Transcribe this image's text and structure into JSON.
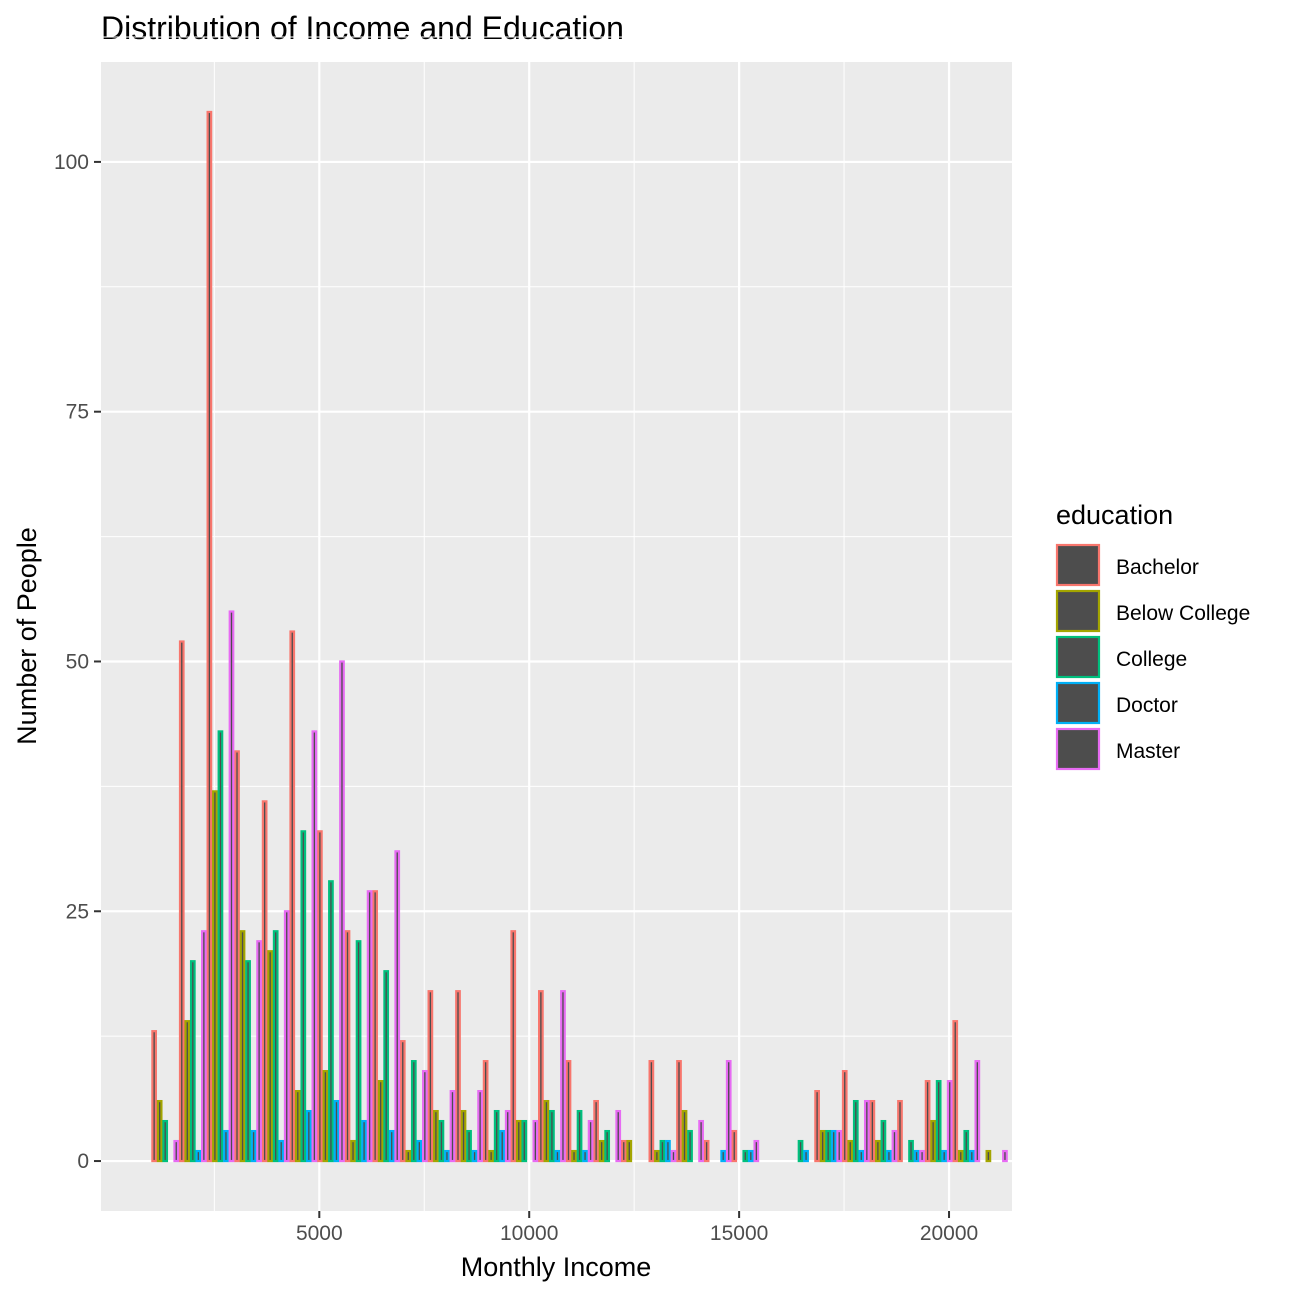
{
  "chart_data": {
    "type": "bar",
    "title": "Distribution of Income and Education",
    "xlabel": "Monthly Income",
    "ylabel": "Number of People",
    "xlim": [
      -200,
      21500
    ],
    "ylim": [
      -5,
      110
    ],
    "x_ticks": [
      5000,
      10000,
      15000,
      20000
    ],
    "y_ticks": [
      0,
      25,
      50,
      75,
      100
    ],
    "x_tick_labels": [
      "5000",
      "10000",
      "15000",
      "20000"
    ],
    "y_tick_labels": [
      "0",
      "25",
      "50",
      "75",
      "100"
    ],
    "bin_start": 1000,
    "bin_width": 658,
    "grid": true,
    "legend": {
      "title": "education",
      "position": "right"
    },
    "series": [
      {
        "name": "Bachelor",
        "color": "#F8766D",
        "values": [
          13,
          52,
          105,
          41,
          36,
          53,
          33,
          23,
          27,
          12,
          17,
          17,
          10,
          23,
          17,
          10,
          6,
          2,
          10,
          10,
          2,
          3,
          0,
          0,
          7,
          9,
          6,
          6,
          8,
          14,
          0
        ]
      },
      {
        "name": "Below College",
        "color": "#A3A500",
        "values": [
          6,
          14,
          37,
          23,
          21,
          7,
          9,
          2,
          8,
          1,
          5,
          5,
          1,
          4,
          6,
          1,
          2,
          2,
          1,
          5,
          0,
          0,
          0,
          0,
          3,
          2,
          2,
          0,
          4,
          1,
          1
        ]
      },
      {
        "name": "College",
        "color": "#00BF7D",
        "values": [
          4,
          20,
          43,
          20,
          23,
          33,
          28,
          22,
          19,
          10,
          4,
          3,
          5,
          4,
          5,
          5,
          3,
          0,
          2,
          3,
          0,
          1,
          0,
          2,
          3,
          6,
          4,
          2,
          8,
          3,
          0
        ]
      },
      {
        "name": "Doctor",
        "color": "#00B0F6",
        "values": [
          0,
          1,
          3,
          3,
          2,
          5,
          6,
          4,
          3,
          2,
          1,
          1,
          3,
          0,
          1,
          1,
          0,
          0,
          2,
          0,
          1,
          1,
          0,
          1,
          3,
          1,
          1,
          1,
          1,
          1,
          0
        ]
      },
      {
        "name": "Master",
        "color": "#E76BF3",
        "values": [
          2,
          23,
          55,
          22,
          25,
          43,
          50,
          27,
          31,
          9,
          7,
          7,
          5,
          4,
          17,
          4,
          5,
          0,
          1,
          4,
          10,
          2,
          0,
          0,
          3,
          6,
          3,
          1,
          8,
          10,
          1
        ]
      }
    ]
  }
}
